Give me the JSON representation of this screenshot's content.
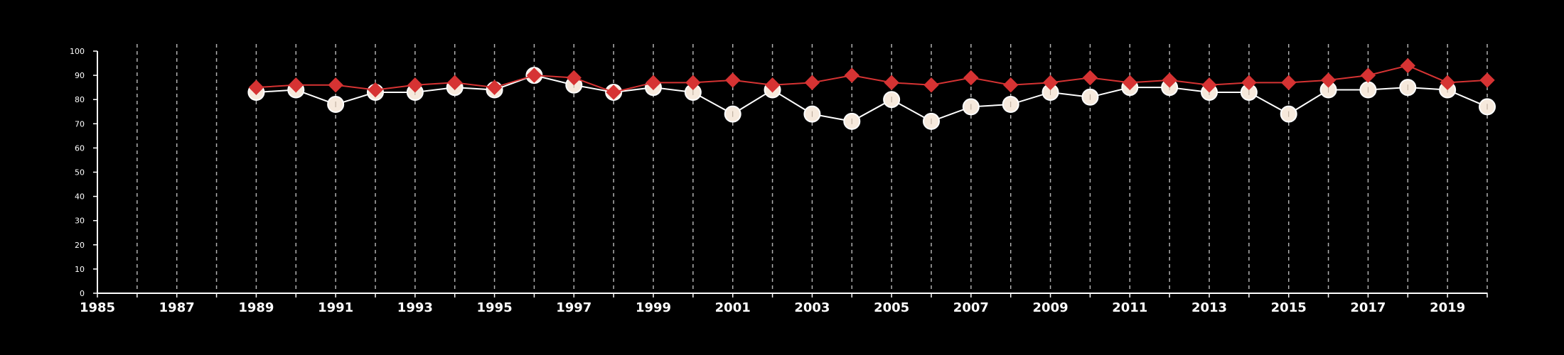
{
  "chart_data": {
    "type": "line",
    "title": "",
    "xlabel": "",
    "ylabel": "",
    "xlim": [
      1985,
      2020
    ],
    "ylim": [
      0,
      100
    ],
    "y_ticks": [
      "0",
      "10",
      "20",
      "30",
      "40",
      "50",
      "60",
      "70",
      "80",
      "90",
      "100"
    ],
    "x_ticks": [
      "1985",
      "1987",
      "1989",
      "1991",
      "1993",
      "1995",
      "1997",
      "1999",
      "2001",
      "2003",
      "2005",
      "2007",
      "2009",
      "2011",
      "2013",
      "2015",
      "2017",
      "2019"
    ],
    "grid": "vertical dashed",
    "legend": "none",
    "x": [
      1989,
      1990,
      1991,
      1992,
      1993,
      1994,
      1995,
      1996,
      1997,
      1998,
      1999,
      2000,
      2001,
      2002,
      2003,
      2004,
      2005,
      2006,
      2007,
      2008,
      2009,
      2010,
      2011,
      2012,
      2013,
      2014,
      2015,
      2016,
      2017,
      2018,
      2019,
      2020
    ],
    "series": [
      {
        "color": "#d63333",
        "marker": "diamond",
        "values": [
          85,
          86,
          86,
          84,
          86,
          87,
          85,
          90,
          89,
          83,
          87,
          87,
          88,
          86,
          87,
          90,
          87,
          86,
          89,
          86,
          87,
          89,
          87,
          88,
          86,
          87,
          87,
          88,
          90,
          94,
          87,
          88
        ]
      },
      {
        "color": "#ffffff",
        "marker": "circle",
        "values": [
          83,
          84,
          78,
          83,
          83,
          85,
          84,
          90,
          86,
          83,
          85,
          83,
          74,
          84,
          74,
          71,
          80,
          71,
          77,
          78,
          83,
          81,
          85,
          85,
          83,
          83,
          74,
          84,
          84,
          85,
          84,
          77
        ]
      }
    ]
  }
}
